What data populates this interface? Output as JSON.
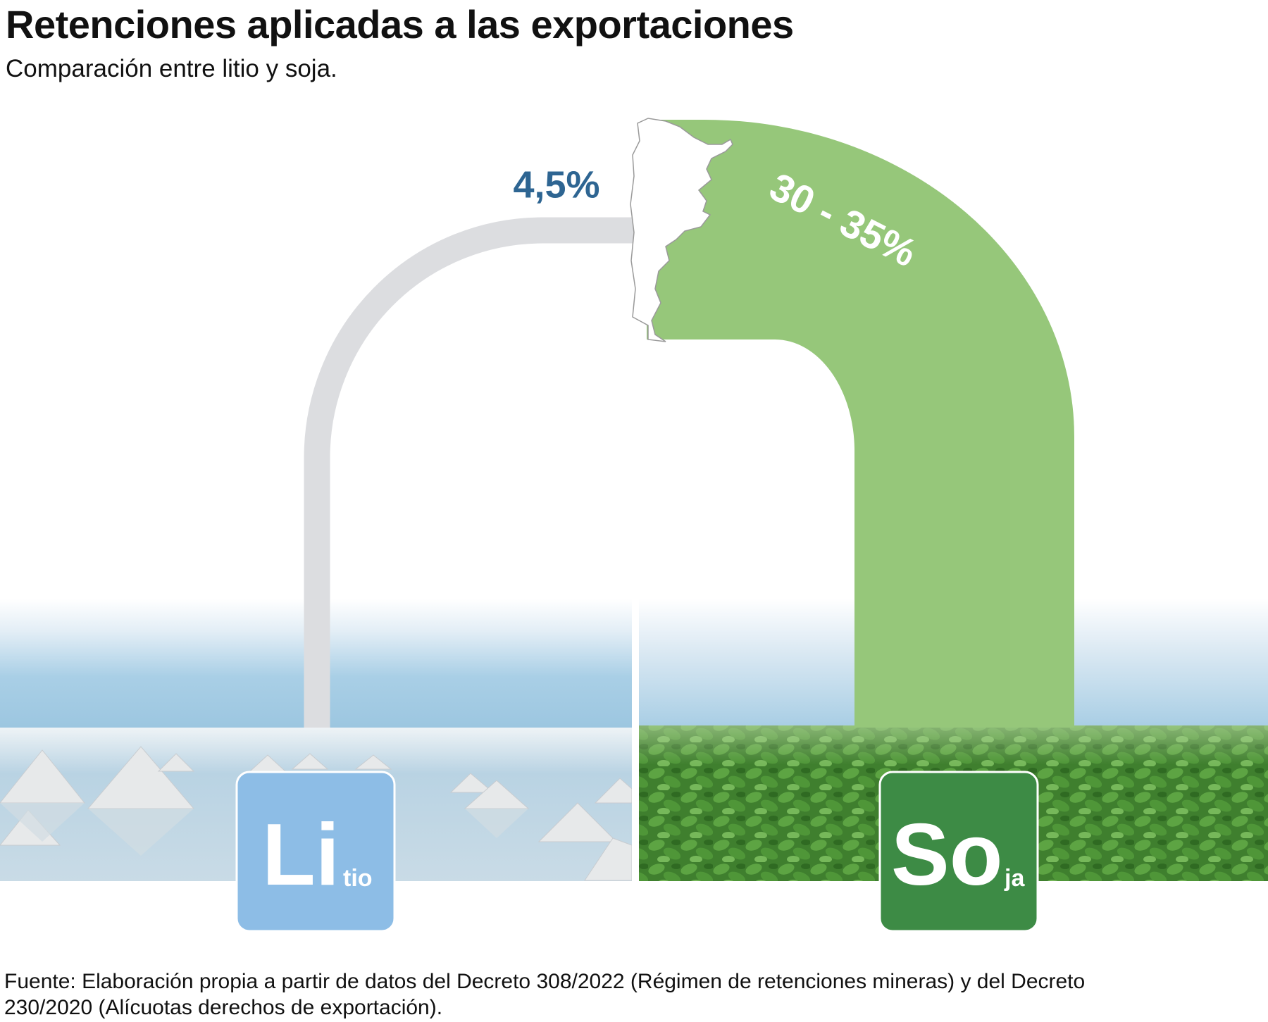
{
  "header": {
    "title": "Retenciones aplicadas a las exportaciones",
    "subtitle": "Comparación entre litio y soja."
  },
  "items": [
    {
      "value_label": "4,5%",
      "symbol": "Li",
      "suffix": "tio"
    },
    {
      "value_label": "30 - 35%",
      "symbol": "So",
      "suffix": "ja"
    }
  ],
  "source": "Fuente: Elaboración propia a partir de datos del Decreto 308/2022 (Régimen de retenciones mineras) y del Decreto 230/2020 (Alícuotas derechos de exportación)."
}
